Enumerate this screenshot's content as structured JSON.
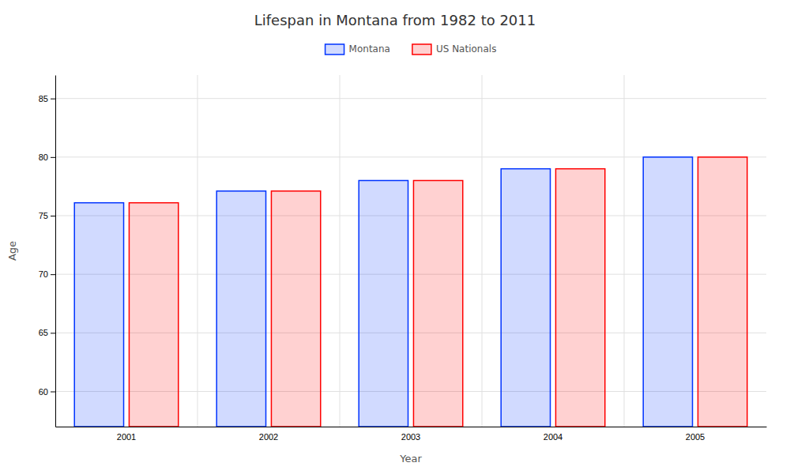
{
  "chart_data": {
    "type": "bar",
    "title": "Lifespan in Montana from 1982 to 2011",
    "xlabel": "Year",
    "ylabel": "Age",
    "categories": [
      "2001",
      "2002",
      "2003",
      "2004",
      "2005"
    ],
    "series": [
      {
        "name": "Montana",
        "color": "#0033ff",
        "values": [
          76.1,
          77.1,
          78.0,
          79.0,
          80.0
        ]
      },
      {
        "name": "US Nationals",
        "color": "#ff0000",
        "values": [
          76.1,
          77.1,
          78.0,
          79.0,
          80.0
        ]
      }
    ],
    "ylim": [
      57,
      87
    ],
    "yticks": [
      60,
      65,
      70,
      75,
      80,
      85
    ],
    "grid": true,
    "legend": "upper center"
  }
}
